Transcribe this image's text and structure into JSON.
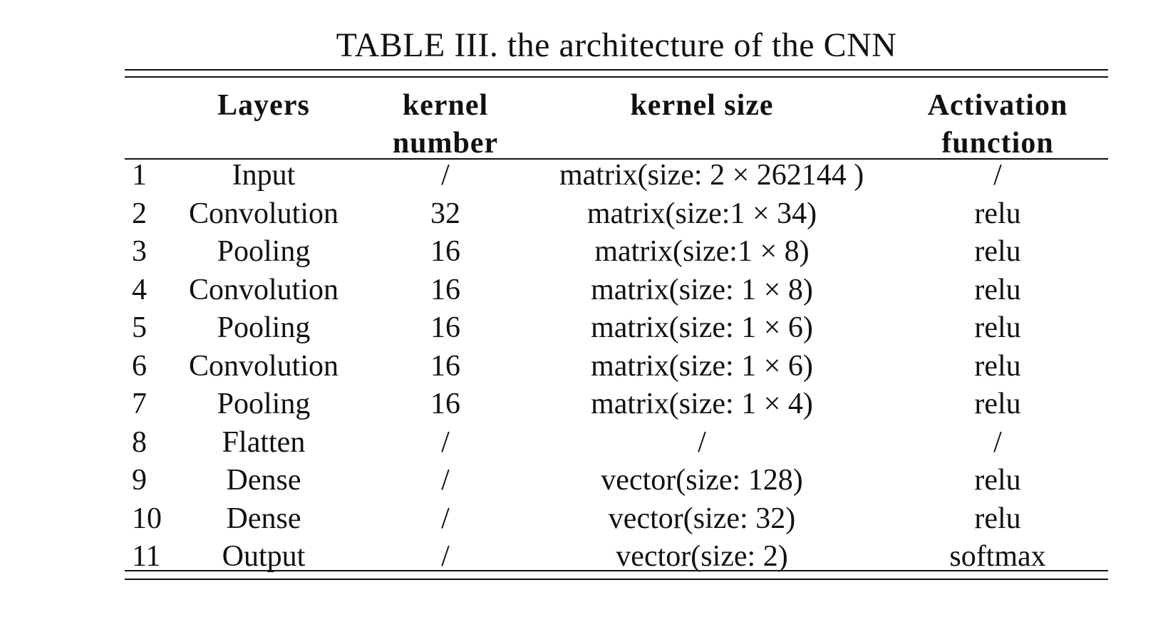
{
  "caption": "TABLE III. the architecture of the CNN",
  "table": {
    "headers": {
      "layers": "Layers",
      "kernel_number_line1": "kernel",
      "kernel_number_line2": "number",
      "kernel_size": "kernel size",
      "activation_line1": "Activation",
      "activation_line2": "function"
    },
    "rows": [
      {
        "num": "1",
        "layer": "Input",
        "kernel_number": "/",
        "kernel_size": "matrix(size: 2 × 262144 )",
        "activation": "/"
      },
      {
        "num": "2",
        "layer": "Convolution",
        "kernel_number": "32",
        "kernel_size": "matrix(size:1 × 34)",
        "activation": "relu"
      },
      {
        "num": "3",
        "layer": "Pooling",
        "kernel_number": "16",
        "kernel_size": "matrix(size:1 × 8)",
        "activation": "relu"
      },
      {
        "num": "4",
        "layer": "Convolution",
        "kernel_number": "16",
        "kernel_size": "matrix(size: 1 × 8)",
        "activation": "relu"
      },
      {
        "num": "5",
        "layer": "Pooling",
        "kernel_number": "16",
        "kernel_size": "matrix(size: 1 × 6)",
        "activation": "relu"
      },
      {
        "num": "6",
        "layer": "Convolution",
        "kernel_number": "16",
        "kernel_size": "matrix(size: 1 × 6)",
        "activation": "relu"
      },
      {
        "num": "7",
        "layer": "Pooling",
        "kernel_number": "16",
        "kernel_size": "matrix(size: 1 × 4)",
        "activation": "relu"
      },
      {
        "num": "8",
        "layer": "Flatten",
        "kernel_number": "/",
        "kernel_size": "/",
        "activation": "/"
      },
      {
        "num": "9",
        "layer": "Dense",
        "kernel_number": "/",
        "kernel_size": "vector(size: 128)",
        "activation": "relu"
      },
      {
        "num": "10",
        "layer": "Dense",
        "kernel_number": "/",
        "kernel_size": "vector(size: 32)",
        "activation": "relu"
      },
      {
        "num": "11",
        "layer": "Output",
        "kernel_number": "/",
        "kernel_size": "vector(size: 2)",
        "activation": "softmax"
      }
    ]
  }
}
